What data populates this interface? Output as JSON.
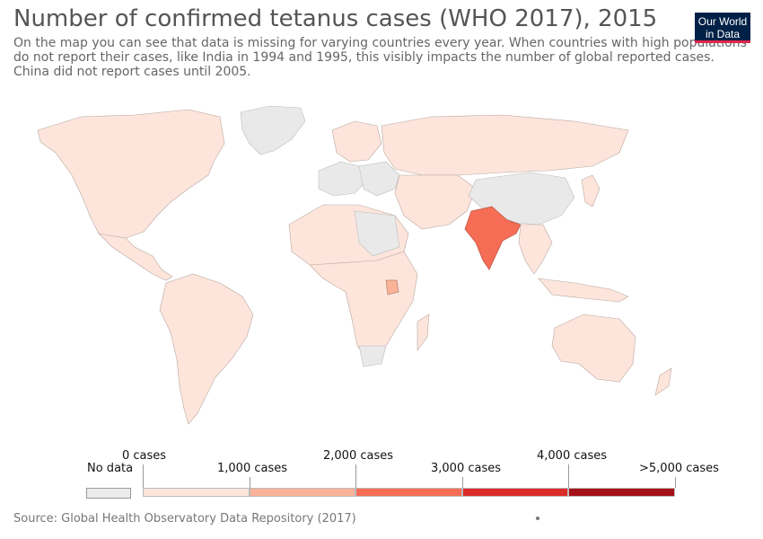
{
  "header": {
    "title": "Number of confirmed tetanus cases (WHO 2017), 2015",
    "subtitle": "On the map you can see that data is missing for varying countries every year. When countries with high populations do not report their cases, like India in 1994 and 1995, this visibly impacts the number of global reported cases. China did not report cases until 2005."
  },
  "logo": {
    "line1": "Our World",
    "line2": "in Data"
  },
  "legend": {
    "no_data": "No data",
    "bins": [
      "0 cases",
      "1,000 cases",
      "2,000 cases",
      "3,000 cases",
      "4,000 cases",
      ">5,000 cases"
    ],
    "colors": [
      "#fde5dc",
      "#fbb398",
      "#f66d55",
      "#da2c28",
      "#a51119"
    ],
    "no_data_color": "#ececec"
  },
  "map_data": {
    "countries": [
      {
        "name": "India",
        "bin": "2,000-3,000 cases"
      },
      {
        "name": "Uganda",
        "bin": "1,000-2,000 cases"
      },
      {
        "name": "China",
        "bin": "No data"
      },
      {
        "name": "Greenland",
        "bin": "No data"
      }
    ]
  },
  "footer": {
    "source": "Source: Global Health Observatory Data Repository (2017)"
  }
}
